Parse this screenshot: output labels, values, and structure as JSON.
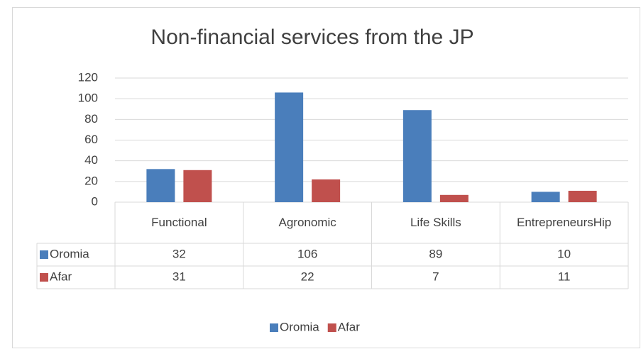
{
  "chart_data": {
    "type": "bar",
    "title": "Non-financial services from the JP",
    "categories": [
      "Functional",
      "Agronomic",
      "Life Skills",
      "EntrepreneursHip"
    ],
    "series": [
      {
        "name": "Oromia",
        "color": "#4a7ebb",
        "values": [
          32,
          106,
          89,
          10
        ]
      },
      {
        "name": "Afar",
        "color": "#c0504d",
        "values": [
          31,
          22,
          7,
          11
        ]
      }
    ],
    "ylim": [
      0,
      120
    ],
    "yticks": [
      0,
      20,
      40,
      60,
      80,
      100,
      120
    ],
    "grid": true,
    "data_table": true,
    "legend": "bottom"
  }
}
